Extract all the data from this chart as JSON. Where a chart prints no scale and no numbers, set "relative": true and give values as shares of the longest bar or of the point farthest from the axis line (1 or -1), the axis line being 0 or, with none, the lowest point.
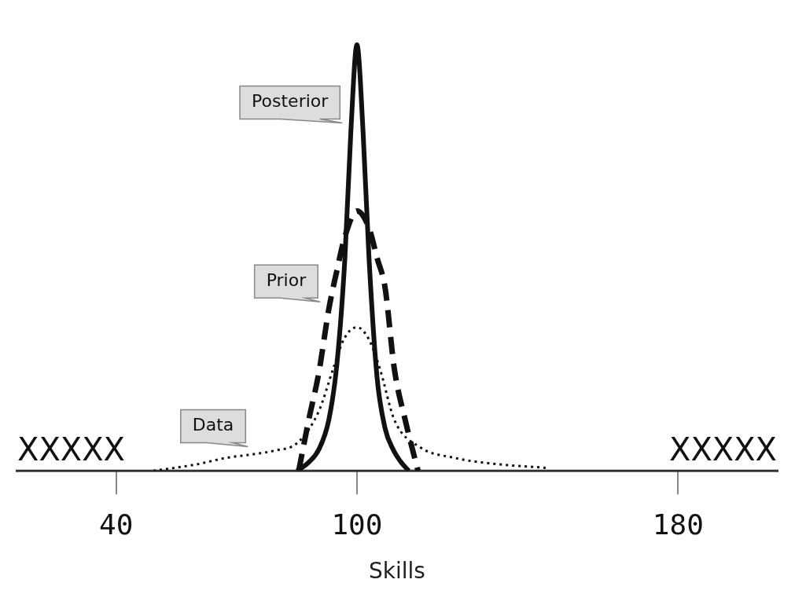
{
  "chart_data": {
    "type": "line",
    "relative": true,
    "xlabel": "Skills",
    "xlim": [
      15,
      205
    ],
    "xticks": [
      40,
      100,
      180
    ],
    "grid": false,
    "legend": false,
    "marker": "none",
    "annotations": [
      "XXXXX",
      "XXXXX"
    ],
    "series": [
      {
        "name": "Posterior",
        "color": "#111111",
        "line_style": "solid",
        "x": [
          85.1,
          88,
          90.5,
          93,
          95,
          97,
          98.5,
          100,
          101.5,
          103,
          105,
          107,
          109,
          111,
          112.9
        ],
        "values": [
          0,
          0.02,
          0.05,
          0.12,
          0.25,
          0.5,
          0.8,
          1,
          0.8,
          0.5,
          0.22,
          0.1,
          0.05,
          0.02,
          0
        ]
      },
      {
        "name": "Prior",
        "color": "#111111",
        "line_style": "dashed",
        "x": [
          85.5,
          88,
          90.5,
          93,
          95,
          97,
          100,
          103,
          105,
          107,
          109.3,
          112,
          115.2
        ],
        "values": [
          0,
          0.12,
          0.23,
          0.38,
          0.47,
          0.55,
          0.61,
          0.57,
          0.5,
          0.43,
          0.24,
          0.12,
          0
        ]
      },
      {
        "name": "Data",
        "color": "#111111",
        "line_style": "dotted",
        "x": [
          49.3,
          60,
          67.2,
          75,
          79.8,
          85.1,
          90.5,
          94.1,
          96.8,
          100,
          102.9,
          105.7,
          109.3,
          115.6,
          124.5,
          133.5,
          147
        ],
        "values": [
          0,
          0.015,
          0.03,
          0.04,
          0.048,
          0.065,
          0.14,
          0.24,
          0.31,
          0.337,
          0.31,
          0.24,
          0.12,
          0.056,
          0.03,
          0.017,
          0.007
        ]
      }
    ]
  }
}
